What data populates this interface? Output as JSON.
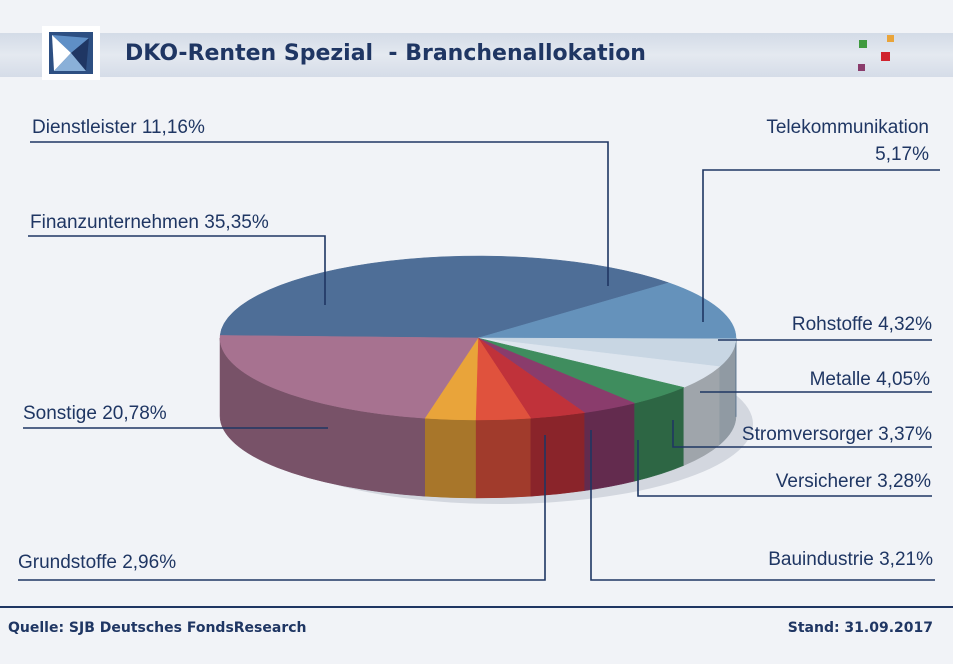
{
  "header": {
    "title": "DKO-Renten Spezial  - Branchenallokation",
    "logo_icon": "star-compass-icon",
    "brand_icon": "colored-squares-icon"
  },
  "footer": {
    "source": "Quelle: SJB Deutsches FondsResearch",
    "stand": "Stand: 31.09.2017"
  },
  "chart_data": {
    "type": "pie",
    "style": "3d",
    "legend": "none",
    "slices": [
      {
        "label": "Finanzunternehmen 35,35%",
        "value": 35.35,
        "color": "#4e6e97"
      },
      {
        "label": "Dienstleister 11,16%",
        "value": 11.16,
        "color": "#6592bb"
      },
      {
        "label": "Telekommunikation",
        "label2": "5,17%",
        "value": 5.17,
        "color": "#c8d6e3"
      },
      {
        "label": "Rohstoffe 4,32%",
        "value": 4.32,
        "color": "#dde5ee"
      },
      {
        "label": "Metalle 4,05%",
        "value": 4.05,
        "color": "#3f8d5e"
      },
      {
        "label": "Stromversorger 3,37%",
        "value": 3.37,
        "color": "#8a3c6c"
      },
      {
        "label": "Versicherer 3,28%",
        "value": 3.28,
        "color": "#c0323a"
      },
      {
        "label": "Bauindustrie 3,21%",
        "value": 3.21,
        "color": "#e0523d"
      },
      {
        "label": "Grundstoffe 2,96%",
        "value": 2.96,
        "color": "#e9a43a"
      },
      {
        "label": "Sonstige 20,78%",
        "value": 20.78,
        "color": "#5e9e78"
      }
    ],
    "display_slices": [
      {
        "label": "Sonstige 20,78%",
        "color": "#a77290"
      }
    ]
  }
}
